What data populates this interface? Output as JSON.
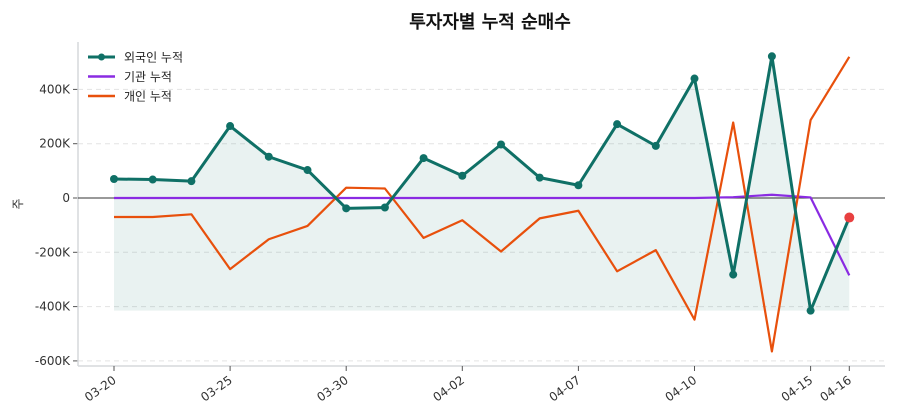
{
  "chart_data": {
    "type": "line",
    "title": "투자자별 누적 순매수",
    "xlabel": "",
    "ylabel": "주",
    "x": [
      0,
      1,
      2,
      3,
      4,
      5,
      6,
      7,
      8,
      9,
      10,
      11,
      12,
      13,
      14,
      15,
      16,
      17,
      18,
      19
    ],
    "x_ticks": [
      {
        "index": 0,
        "label": "03-20"
      },
      {
        "index": 3,
        "label": "03-25"
      },
      {
        "index": 6,
        "label": "03-30"
      },
      {
        "index": 9,
        "label": "04-02"
      },
      {
        "index": 12,
        "label": "04-07"
      },
      {
        "index": 15,
        "label": "04-10"
      },
      {
        "index": 18,
        "label": "04-15"
      },
      {
        "index": 19,
        "label": "04-16"
      }
    ],
    "y_ticks": [
      {
        "value": 400000,
        "label": "400K"
      },
      {
        "value": 200000,
        "label": "200K"
      },
      {
        "value": 0,
        "label": "0"
      },
      {
        "value": -200000,
        "label": "-200K"
      },
      {
        "value": -400000,
        "label": "-400K"
      },
      {
        "value": -600000,
        "label": "-600K"
      }
    ],
    "ylim": [
      -620000,
      580000
    ],
    "grid": true,
    "legend_position": "top-left",
    "series": [
      {
        "name": "외국인 누적",
        "color": "#0f7066",
        "markers": true,
        "fill": true,
        "values": [
          70000,
          68000,
          62000,
          265000,
          152000,
          103000,
          -38000,
          -35000,
          147000,
          82000,
          197000,
          75000,
          47000,
          272000,
          192000,
          440000,
          -282000,
          522000,
          -415000,
          -72000
        ]
      },
      {
        "name": "기관 누적",
        "color": "#8a2be2",
        "markers": false,
        "values": [
          0,
          0,
          0,
          0,
          0,
          0,
          0,
          0,
          0,
          0,
          0,
          0,
          0,
          0,
          0,
          0,
          3000,
          12000,
          2000,
          -285000
        ]
      },
      {
        "name": "개인 누적",
        "color": "#e8500c",
        "markers": false,
        "values": [
          -70000,
          -70000,
          -60000,
          -262000,
          -152000,
          -103000,
          38000,
          35000,
          -147000,
          -82000,
          -197000,
          -75000,
          -47000,
          -270000,
          -192000,
          -448000,
          278000,
          -565000,
          287000,
          520000
        ]
      }
    ],
    "highlight": {
      "series": "외국인 누적",
      "index": 19,
      "color": "#e84040"
    }
  }
}
